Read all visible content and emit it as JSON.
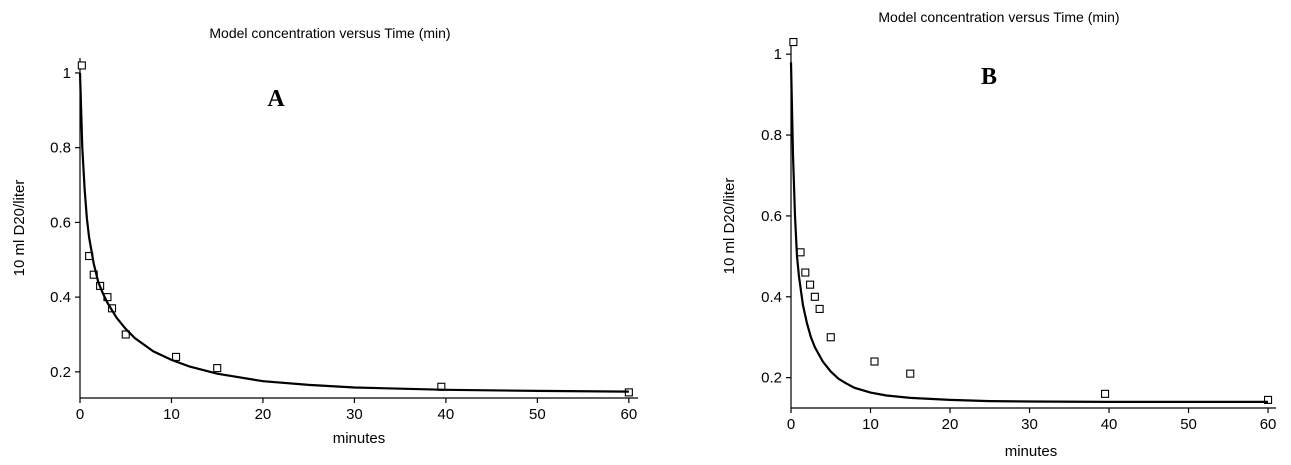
{
  "chart_data": [
    {
      "type": "scatter",
      "title": "Model concentration versus Time (min)",
      "panel_label": "A",
      "xlabel": "minutes",
      "ylabel": "10 ml D20/liter",
      "xlim": [
        0,
        61
      ],
      "ylim": [
        0.13,
        1.04
      ],
      "x_ticks": [
        0,
        10,
        20,
        30,
        40,
        50,
        60
      ],
      "y_ticks": [
        0.2,
        0.4,
        0.6,
        0.8,
        1
      ],
      "grid": false,
      "series": [
        {
          "kind": "points",
          "marker": "square",
          "x": [
            0.2,
            1.0,
            1.5,
            2.2,
            3.0,
            3.5,
            5.0,
            10.5,
            15.0,
            39.5,
            60.0
          ],
          "y": [
            1.02,
            0.51,
            0.46,
            0.43,
            0.4,
            0.37,
            0.3,
            0.24,
            0.21,
            0.16,
            0.145
          ]
        },
        {
          "kind": "line",
          "x": [
            0,
            0.25,
            0.5,
            0.75,
            1,
            1.5,
            2,
            2.5,
            3,
            4,
            5,
            6,
            8,
            10,
            12,
            15,
            20,
            25,
            30,
            40,
            50,
            60
          ],
          "y": [
            1.0,
            0.8,
            0.69,
            0.61,
            0.56,
            0.49,
            0.44,
            0.41,
            0.385,
            0.345,
            0.315,
            0.29,
            0.255,
            0.232,
            0.214,
            0.195,
            0.175,
            0.165,
            0.158,
            0.152,
            0.149,
            0.147
          ]
        }
      ]
    },
    {
      "type": "scatter",
      "title": "Model concentration versus Time (min)",
      "panel_label": "B",
      "xlabel": "minutes",
      "ylabel": "10 ml D20/liter",
      "xlim": [
        0,
        61
      ],
      "ylim": [
        0.125,
        1.04
      ],
      "x_ticks": [
        0,
        10,
        20,
        30,
        40,
        50,
        60
      ],
      "y_ticks": [
        0.2,
        0.4,
        0.6,
        0.8,
        1
      ],
      "grid": false,
      "series": [
        {
          "kind": "points",
          "marker": "square",
          "x": [
            0.3,
            1.2,
            1.8,
            2.4,
            3.0,
            3.6,
            5.0,
            10.5,
            15.0,
            39.5,
            60.0
          ],
          "y": [
            1.03,
            0.51,
            0.46,
            0.43,
            0.4,
            0.37,
            0.3,
            0.24,
            0.21,
            0.16,
            0.145
          ]
        },
        {
          "kind": "line",
          "x": [
            0,
            0.25,
            0.5,
            0.75,
            1,
            1.5,
            2,
            2.5,
            3,
            4,
            5,
            6,
            7,
            8,
            10,
            12,
            15,
            20,
            25,
            30,
            40,
            50,
            60
          ],
          "y": [
            0.98,
            0.75,
            0.6,
            0.5,
            0.45,
            0.38,
            0.335,
            0.3,
            0.275,
            0.24,
            0.215,
            0.197,
            0.185,
            0.175,
            0.163,
            0.156,
            0.15,
            0.145,
            0.142,
            0.141,
            0.14,
            0.14,
            0.14
          ]
        }
      ]
    }
  ]
}
